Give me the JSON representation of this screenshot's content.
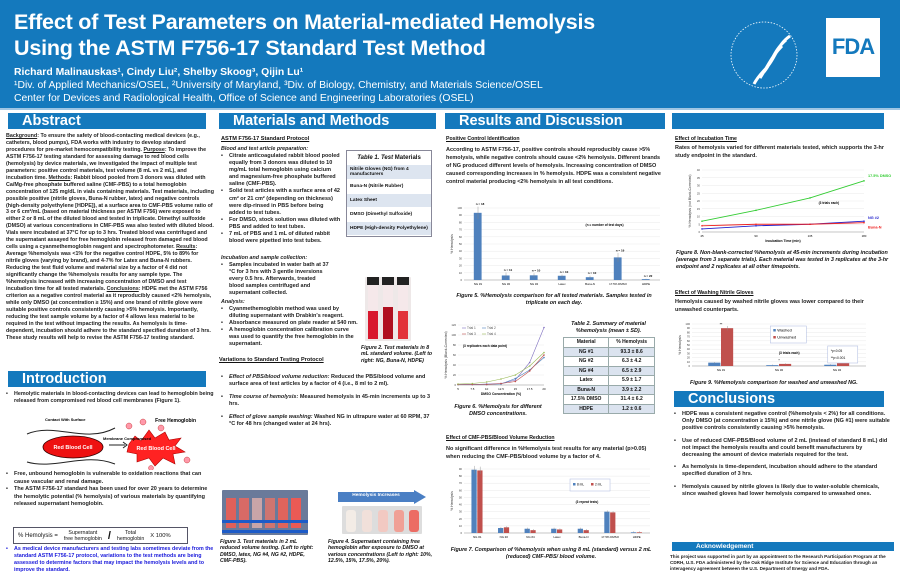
{
  "header": {
    "title_line1": "Effect of Test Parameters on Material-mediated Hemolysis",
    "title_line2": "Using the ASTM F756-17 Standard Test Method",
    "authors": "Richard Malinauskas¹, Cindy Liu², Shelby Skoog³, Qijin Lu¹",
    "affiliations": "¹Div. of Applied Mechanics/OSEL, ²University of Maryland, ³Div. of Biology, Chemistry, and Materials Science/OSEL",
    "center": "Center for Devices and Radiological Health, Office of Science and Engineering Laboratories (OSEL)",
    "logo_text": "FDA",
    "seal_text": "DEPARTMENT OF HEALTH & HUMAN SERVICES USA"
  },
  "abstract": {
    "heading": "Abstract",
    "bg_label": "Background",
    "bg_text": ": To ensure the safety of blood-contacting medical devices (e.g., catheters, blood pumps), FDA works with industry to develop standard procedures for pre-market hemocompatibility testing. ",
    "purpose_label": "Purpose",
    "purpose_text": ": To improve the ASTM F756-17 testing standard for assessing damage to red blood cells (hemolysis) by device materials, we investigated the impact of multiple test parameters: positive control materials, test volume (8 mL vs 2 mL), and incubation time. ",
    "methods_label": "Methods",
    "methods_text": ": Rabbit blood pooled from 3 donors was diluted with Ca/Mg-free phosphate buffered saline (CMF-PBS) to a total hemoglobin concentration of 125 mg/dL in vials containing materials. Test materials, including possible positive (nitrile gloves, Buna-N rubber, latex) and negative controls (high-density polyethylene [HDPE]), at a surface area to CMF-PBS volume ratio of 3 or 6 cm²/mL (based on material thickness per ASTM F756) were exposed to either 2 or 8 mL of the diluted blood and tested in triplicate. Dimethyl sulfoxide (DMSO) at various concentrations in CMF-PBS was also tested with diluted blood. Vials were incubated at 37°C for up to 3 hrs. Treated blood was centrifuged and the supernatant assayed for free hemoglobin released from damaged red blood cells using a cyanmethemoglobin reagent and spectrophotometer. ",
    "results_label": "Results",
    "results_text": ": Average %hemolysis was <1% for the negative control HDPE, 5% to 89% for nitrile gloves (varying by brand), and 4-7% for Latex and Buna-N rubbers. Reducing the test fluid volume and material size by a factor of 4 did not significantly change the %hemolysis results for any sample type. The %hemolysis increased with increasing concentration of DMSO and test incubation time for all tested materials. ",
    "conclusions_label": "Conclusions",
    "conclusions_text": ": HDPE met the ASTM F756 criterion as a negative control material as it reproducibly caused <2% hemolysis, while only DMSO (at concentration ≥ 15%) and one brand of nitrile glove were suitable positive controls consistently causing >5% hemolysis. Importantly, reducing the test sample volume by a factor of 4 allows less material to be required in the test without impacting the results. As hemolysis is time-dependent, incubation should adhere to the standard specified duration of 3 hrs. These study results will help to revise the ASTM F756-17 testing standard."
  },
  "introduction": {
    "heading": "Introduction",
    "bullet1": "Hemolytic materials in blood-contacting devices can lead to hemoglobin being released from compromised red blood cell membranes (Figure 1).",
    "fig1": {
      "contact": "Contact With Surface",
      "membrane": "Membrane Compromised",
      "free": "Free Hemoglobin",
      "rbc1": "Red Blood Cell",
      "rbc2": "Red Blood Cell"
    },
    "bullet2": "Free, unbound hemoglobin is vulnerable to oxidation reactions that can cause vascular and renal damage.",
    "bullet3": "The ASTM F756-17 standard has been used for over 20 years to determine the hemolytic potential (% hemolysis) of various materials by quantifying released supernatant hemoglobin.",
    "formula": {
      "lhs": "% Hemolysis  =",
      "num1": "Supernatant",
      "den1": "free hemoglobin",
      "slash": "/",
      "num2": "Total",
      "den2": "hemoglobin",
      "times": "X  100%"
    },
    "bullet4": "As medical device manufacturers and testing labs sometimes deviate from the standard ASTM F756-17 protocol, variations to the test methods are being assessed to determine factors that may impact the hemolysis levels and to improve the standard."
  },
  "methods": {
    "heading": "Materials and Methods",
    "protocol_title": "ASTM F756-17 Standard Protocol",
    "prep_title": "Blood and test article preparation:",
    "prep": [
      "Citrate anticoagulated rabbit blood pooled equally from 3 donors was diluted to 10 mg/mL total hemoglobin using calcium and magnesium-free phosphate buffered saline (CMF-PBS).",
      "Solid test articles with a surface area of 42 cm² or 21 cm² (depending on thickness) were dip-rinsed in PBS before being added to test tubes.",
      "For DMSO, stock solution was diluted with PBS and added to test tubes.",
      "7 mL of PBS and 1 mL of diluted rabbit blood were pipetted into test tubes."
    ],
    "incubation_title": "Incubation and sample collection:",
    "incubation": [
      "Samples incubated in water bath at 37 °C for 3 hrs with 3 gentle inversions every 0.5 hrs. Afterwards, treated blood samples centrifuged and supernatant collected."
    ],
    "analysis_title": "Analysis:",
    "analysis": [
      "Cyanmethemoglobin method was used by diluting supernatant with Drabkin's reagent.",
      "Absorbance measured on plate reader at 540 nm.",
      "A hemoglobin concentration calibration curve was used to quantify the free hemoglobin in the supernatant."
    ],
    "table1": {
      "title_italic": "Table 1. Test",
      "title_rest": " Materials",
      "rows": [
        "Nitrile Gloves (NG) from 4 manufacturers",
        "Buna-N (Nitrile Rubber)",
        "Latex Sheet",
        "DMSO (Dimethyl Sulfoxide)",
        "HDPE (High-density Polyethylene)"
      ]
    },
    "fig2_caption": "Figure 2. Test materials in 8 mL standard volume. (Left to right: NG, Buna-N, HDPE)",
    "variations_title": "Variations to Standard Testing Protocol",
    "variations": [
      {
        "label": "Effect of PBS/blood volume reduction:",
        "text": " Reduced the PBS/blood volume and surface area of test articles by a factor of 4 (i.e., 8 ml to 2 ml)."
      },
      {
        "label": "Time course of hemolysis:",
        "text": " Measured hemolysis in 45-min increments up to 3 hrs."
      },
      {
        "label": "Effect of glove sample washing:",
        "text": " Washed NG in ultrapure water at 60 RPM, 37 °C for 48 hrs (changed water at 24 hrs)."
      }
    ],
    "fig3_caption": "Figure 3. Test materials in 2 mL reduced volume testing. (Left to right: DMSO, latex, NG #4, NG #2, HDPE, CMF-PBS).",
    "fig4_arrow": "Hemolysis Increases",
    "fig4_caption": "Figure 4. Supernatant containing free hemoglobin after exposure to DMSO at various concentrations (Left to right: 10%, 12.5%, 15%, 17.5%, 20%)."
  },
  "results": {
    "heading": "Results and Discussion",
    "pci_title": "Positive Control Identification",
    "pci_text": "According to ASTM F756-17, positive controls should reproducibly cause >5% hemolysis, while negative controls should cause <2% hemolysis. Different brands of NG produced different levels of hemolysis. Increasing concentration of DMSO caused corresponding increases in % hemolysis. HDPE was a consistent negative control material producing <2% hemolysis in all test conditions.",
    "fig5_caption": "Figure 5. %Hemolysis comparison for all tested materials. Samples tested in triplicate on each day.",
    "fig6_caption": "Figure 6. %Hemolysis for different DMSO concentrations.",
    "table2": {
      "title": "Table 2. Summary of material %hemolysis (mean ± SD).",
      "headers": [
        "Material",
        "% Hemolysis"
      ],
      "rows": [
        [
          "NG #1",
          "93.3 ± 8.6"
        ],
        [
          "NG #2",
          "6.3 ± 4.2"
        ],
        [
          "NG #4",
          "6.5 ± 2.9"
        ],
        [
          "Latex",
          "5.9 ± 1.7"
        ],
        [
          "Buna-N",
          "3.9 ± 2.2"
        ],
        [
          "17.5% DMSO",
          "31.4 ± 6.2"
        ],
        [
          "HDPE",
          "1.2 ± 0.6"
        ]
      ]
    },
    "vol_title": "Effect of CMF-PBS/Blood Volume Reduction",
    "vol_text": "No significant difference in %Hemolysis test results for any material (p>0.05) when reducing the CMF-PBS/blood volume by a factor of 4.",
    "fig7_caption": "Figure 7. Comparison of %hemolysis when using 8 mL (standard) versus 2 mL (reduced) CMF-PBS/ blood volume.",
    "inc_title": "Effect of Incubation Time",
    "inc_text": "Rates of hemolysis varied for different materials tested, which supports the 3-hr study endpoint in the standard.",
    "fig8_caption": "Figure 8. Non-blank-corrected %hemolysis at 45-min increments during incubation (average from 3 separate trials). Each material was tested in 3 replicates at the 3-hr endpoint and 2 replicates at all other timepoints.",
    "wash_title": "Effect of Washing Nitrile Gloves",
    "wash_text": "Hemolysis caused by washed nitrile gloves was lower compared to their unwashed counterparts.",
    "fig9_caption": "Figure 9. %Hemolysis comparison for washed and unwashed NG."
  },
  "conclusions": {
    "heading": "Conclusions",
    "items": [
      "HDPE was a consistent negative control (%hemolysis < 2%) for all conditions. Only DMSO (at concentration ≥ 15%) and one nitrile glove (NG #1) were suitable positive controls consistently causing >5% hemolysis.",
      "Use of reduced CMF-PBS/Blood volume of 2 mL (instead of standard 8 mL) did not impact the hemolysis results and could benefit manufacturers by decreasing the amount of device materials required for the test.",
      "As hemolysis is time-dependent, incubation should adhere to the standard specified duration of 3 hrs.",
      "Hemolysis caused by nitrile gloves is likely due to water-soluble chemicals, since washed gloves had lower hemolysis compared to unwashed ones."
    ]
  },
  "acknowledgement": {
    "heading": "Acknowledgement",
    "text": "This project was supported in part by an appointment to the Research Participation Program at the CDRH, U.S. FDA administered by the Oak Ridge Institute for Science and Education through an interagency agreement between the U.S. Department of Energy and FDA."
  },
  "colors": {
    "header_blue": "#1479bd",
    "bar_blue": "#4f81bd",
    "bar_red": "#c0504d",
    "intro_blue_text": "#1a1adb"
  },
  "chart_data": [
    {
      "id": "fig5",
      "type": "bar",
      "categories": [
        "NG #1",
        "NG #2",
        "NG #4",
        "Latex",
        "Buna-N",
        "17.5% DMSO",
        "HDPE"
      ],
      "values": [
        93.3,
        6.3,
        6.5,
        5.9,
        3.9,
        31.4,
        1.2
      ],
      "errors": [
        8.6,
        4.2,
        2.9,
        1.7,
        2.2,
        6.2,
        0.6
      ],
      "data_labels": [
        "n = 18",
        "n = 11",
        "n = 10",
        "n = 10",
        "n = 10",
        "n = 19",
        "n = 22"
      ],
      "ylabel": "% Hemolysis",
      "ylim": [
        0,
        100
      ],
      "yticks": [
        0,
        10,
        20,
        30,
        40,
        50,
        60,
        70,
        80,
        90,
        100
      ],
      "annotation": "(n = number of test days)",
      "grid": true
    },
    {
      "id": "fig6",
      "type": "line",
      "x": [
        5,
        7.5,
        10,
        12.5,
        15,
        17.5,
        20
      ],
      "series": [
        {
          "name": "Trial 1",
          "values": [
            1,
            1,
            2,
            3,
            10,
            45,
            115
          ]
        },
        {
          "name": "Trial 2",
          "values": [
            1,
            1,
            1,
            2,
            13,
            30,
            55
          ]
        },
        {
          "name": "Trial 3",
          "values": [
            1,
            1,
            1,
            3,
            7,
            28,
            60
          ]
        },
        {
          "name": "Trial 4",
          "values": [
            2,
            3,
            6,
            12,
            20,
            38,
            65
          ]
        }
      ],
      "xlabel": "DMSO Concentration (%)",
      "ylabel": "% Hemolysis (Blank-Corrected)",
      "ylim": [
        0,
        120
      ],
      "yticks": [
        0,
        20,
        40,
        60,
        80,
        100,
        120
      ],
      "annotation": "(3 replicates each data point)",
      "legend": "top-left",
      "grid": true
    },
    {
      "id": "fig7",
      "type": "bar",
      "categories": [
        "NG #1",
        "NG #2",
        "NG #4",
        "Latex",
        "Buna-N",
        "17.5% DMSO",
        "HDPE"
      ],
      "series": [
        {
          "name": "8 mL",
          "values": [
            89,
            7,
            6,
            6,
            6,
            30,
            1
          ]
        },
        {
          "name": "2 mL",
          "values": [
            88,
            8,
            4,
            5,
            4,
            29,
            1
          ]
        }
      ],
      "ylabel": "% Hemolysis",
      "ylim": [
        0,
        90
      ],
      "yticks": [
        0,
        10,
        20,
        30,
        40,
        50,
        60,
        70,
        80,
        90
      ],
      "annotation": "(3 repeat tests)",
      "legend": "top-right",
      "grid": true
    },
    {
      "id": "fig8",
      "type": "line",
      "x": [
        45,
        90,
        135,
        180
      ],
      "series": [
        {
          "name": "17.5% DMSO",
          "values": [
            7,
            14,
            22,
            33
          ]
        },
        {
          "name": "NG #2",
          "values": [
            2,
            4,
            5,
            7
          ]
        },
        {
          "name": "Buna-N",
          "values": [
            4,
            5,
            5,
            6
          ]
        }
      ],
      "xlabel": "Incubation Time (min)",
      "ylabel": "% Hemolysis (not Blank-Corrected)",
      "ylim": [
        0,
        40
      ],
      "yticks": [
        0,
        5,
        10,
        15,
        20,
        25,
        30,
        35,
        40
      ],
      "annotation": "(3 trials each)",
      "grid": true
    },
    {
      "id": "fig9",
      "type": "bar",
      "categories": [
        "NG #1",
        "NG #2",
        "NG #4"
      ],
      "series": [
        {
          "name": "Washed",
          "values": [
            8,
            2,
            3
          ]
        },
        {
          "name": "Unwashed",
          "values": [
            90,
            5,
            8
          ]
        }
      ],
      "ylabel": "% Hemolysis",
      "ylim": [
        0,
        100
      ],
      "yticks": [
        0,
        10,
        20,
        30,
        40,
        50,
        60,
        70,
        80,
        90,
        100
      ],
      "significance": [
        "**",
        "*",
        "*"
      ],
      "annotation": "(3 trials each)",
      "notes": [
        "*p<0.05",
        "**p<0.001"
      ],
      "legend": "top-right",
      "grid": true
    }
  ]
}
